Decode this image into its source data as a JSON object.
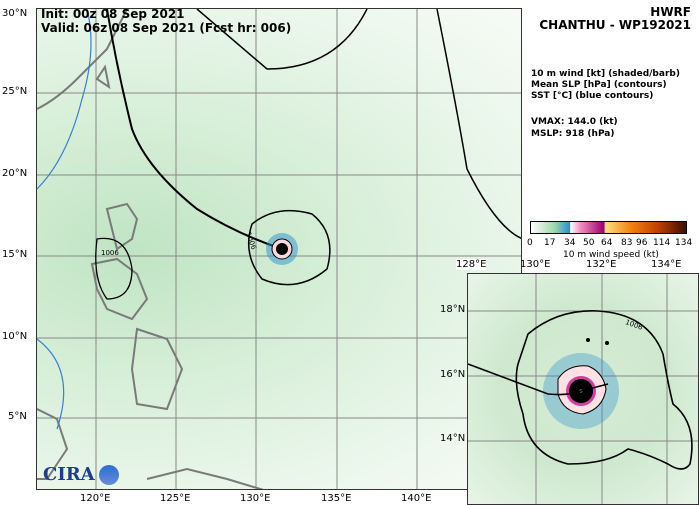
{
  "header": {
    "init": "Init:   00z 08 Sep 2021",
    "valid": "Valid: 06z 08 Sep 2021 (Fcst hr: 006)",
    "model": "HWRF",
    "storm": "CHANTHU - WP192021"
  },
  "legend": {
    "lines": [
      "10 m wind [kt] (shaded/barb)",
      "Mean SLP [hPa] (contours)",
      "SST [°C] (blue contours)"
    ],
    "vmax": "VMAX: 144.0 (kt)",
    "mslp": "MSLP:  918 (hPa)"
  },
  "colorbar": {
    "ticks": [
      "0",
      "17",
      "34",
      "50",
      "64",
      "83",
      "96",
      "114",
      "134"
    ],
    "label": "10 m wind speed (kt)",
    "colors": [
      "#ffffff",
      "#9fd8a8",
      "#2a8fd0",
      "#ffffff",
      "#f090c0",
      "#9a0070",
      "#ffe080",
      "#f08010",
      "#c04000",
      "#3a1000"
    ]
  },
  "main_map": {
    "lat_labels": [
      "30°N",
      "25°N",
      "20°N",
      "15°N",
      "10°N",
      "5°N"
    ],
    "lon_labels": [
      "120°E",
      "125°E",
      "130°E",
      "135°E",
      "140°E"
    ],
    "contour_label": "1006",
    "contour_label_2": "1006"
  },
  "inset_map": {
    "lat_labels": [
      "18°N",
      "16°N",
      "14°N"
    ],
    "lon_labels": [
      "128°E",
      "130°E",
      "132°E",
      "134°E"
    ],
    "contour_label": "1006"
  },
  "logo": {
    "text": "CIRA"
  },
  "colors": {
    "land_outline": "#808080",
    "sst_contour": "#3a7fd0",
    "slp_contour": "#000000",
    "field_green": "#d8eed8"
  }
}
